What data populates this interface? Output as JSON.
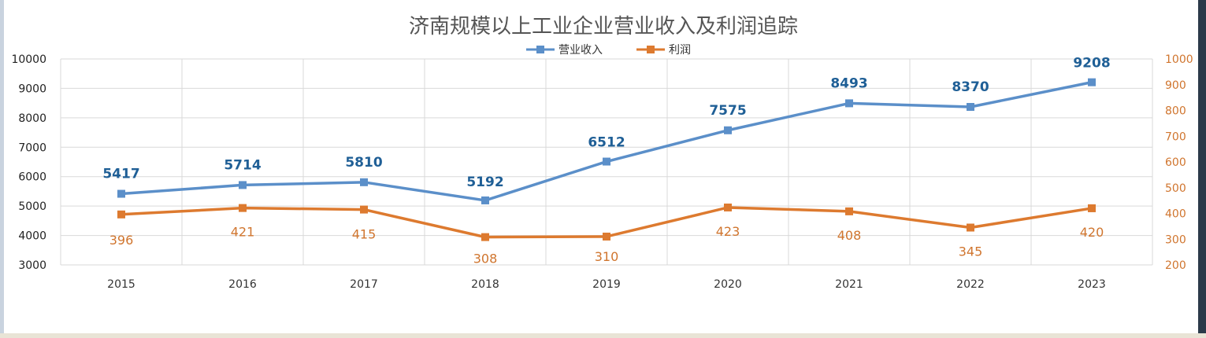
{
  "chart_data": {
    "type": "line",
    "title": "济南规模以上工业企业营业收入及利润追踪",
    "categories": [
      "2015",
      "2016",
      "2017",
      "2018",
      "2019",
      "2020",
      "2021",
      "2022",
      "2023"
    ],
    "series": [
      {
        "name": "营业收入",
        "axis": "left",
        "color": "#5b8fc9",
        "label_color": "#1f5f96",
        "values": [
          5417,
          5714,
          5810,
          5192,
          6512,
          7575,
          8493,
          8370,
          9208
        ],
        "labels": [
          "5417",
          "5714",
          "5810",
          "5192",
          "6512",
          "7575",
          "8493",
          "8370",
          "9208"
        ]
      },
      {
        "name": "利润",
        "axis": "right",
        "color": "#dd7a2f",
        "label_color": "#d0752e",
        "values": [
          396,
          421,
          415,
          308,
          310,
          423,
          408,
          345,
          420
        ],
        "labels": [
          "396",
          "421",
          "415",
          "308",
          "310",
          "423",
          "408",
          "345",
          "420"
        ]
      }
    ],
    "y_left": {
      "min": 3000,
      "max": 10000,
      "ticks": [
        "3000",
        "4000",
        "5000",
        "6000",
        "7000",
        "8000",
        "9000",
        "10000"
      ],
      "color": "#222222"
    },
    "y_right": {
      "min": 200,
      "max": 1000,
      "ticks": [
        "200",
        "300",
        "400",
        "500",
        "600",
        "700",
        "800",
        "900",
        "1000"
      ],
      "color": "#d0752e"
    },
    "grid": true,
    "legend_position": "top-center"
  }
}
